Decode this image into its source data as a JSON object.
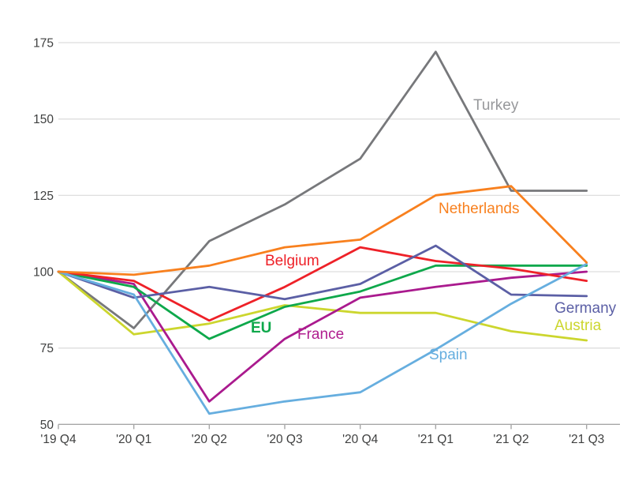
{
  "chart_data": {
    "type": "line",
    "title": "",
    "xlabel": "",
    "ylabel": "",
    "categories": [
      "'19 Q4",
      "'20 Q1",
      "'20 Q2",
      "'20 Q3",
      "'20 Q4",
      "'21 Q1",
      "'21 Q2",
      "'21 Q3"
    ],
    "yticks": [
      175,
      150,
      125,
      100,
      75,
      50
    ],
    "ylim": [
      50,
      175
    ],
    "grid": "horizontal-only",
    "legend": "inline-labels-next-to-lines",
    "series": [
      {
        "name": "Turkey",
        "color": "#77787b",
        "label_color": "#97989b",
        "values": [
          100,
          81.5,
          110,
          122,
          137,
          172,
          126.5,
          126.5
        ]
      },
      {
        "name": "Austria",
        "color": "#ccd62e",
        "label_color": "#ccd62e",
        "values": [
          100,
          79.5,
          83,
          89,
          86.5,
          86.5,
          80.5,
          77.5
        ]
      },
      {
        "name": "France",
        "color": "#aa1a8e",
        "label_color": "#b01d8e",
        "values": [
          100,
          96,
          57.5,
          78,
          91.5,
          95,
          98,
          100
        ]
      },
      {
        "name": "EU",
        "color": "#0ea84b",
        "label_color": "#0ea84b",
        "values": [
          100,
          95,
          78,
          88.5,
          93.5,
          102,
          102,
          102
        ]
      },
      {
        "name": "Belgium",
        "color": "#ee2128",
        "label_color": "#ee2128",
        "values": [
          100,
          97,
          84,
          95,
          108,
          103.5,
          101,
          97
        ]
      },
      {
        "name": "Germany",
        "color": "#5b5fa5",
        "label_color": "#5b5fa5",
        "values": [
          100,
          91.5,
          95,
          91,
          96,
          108.5,
          92.5,
          92
        ]
      },
      {
        "name": "Spain",
        "color": "#66aedf",
        "label_color": "#66aedf",
        "values": [
          100,
          92.5,
          53.5,
          57.5,
          60.5,
          74.5,
          89.5,
          102.5
        ]
      },
      {
        "name": "Netherlands",
        "color": "#f8801e",
        "label_color": "#f8801e",
        "values": [
          100,
          99,
          102,
          108,
          110.5,
          125,
          128,
          103
        ]
      }
    ]
  },
  "style_colors": {
    "gridline": "#dedede",
    "axis_line": "#a6a6a6",
    "tick_text": "#3f4040",
    "background": "#ffffff"
  }
}
